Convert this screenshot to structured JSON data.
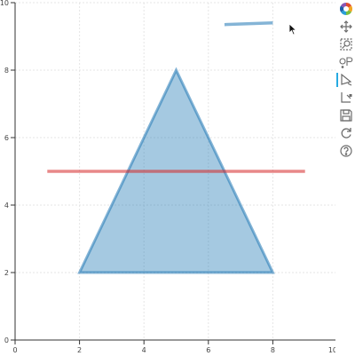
{
  "chart_data": {
    "type": "scatter",
    "title": "",
    "xlabel": "",
    "ylabel": "",
    "xlim": [
      0,
      10
    ],
    "ylim": [
      0,
      10
    ],
    "grid": true,
    "x_ticks": [
      0,
      2,
      4,
      6,
      8,
      10
    ],
    "y_ticks": [
      0,
      2,
      4,
      6,
      8,
      10
    ],
    "x_tick_labels": [
      "0",
      "2",
      "4",
      "6",
      "8",
      "10"
    ],
    "y_tick_labels": [
      "0",
      "2",
      "4",
      "6",
      "8",
      "10"
    ],
    "shapes": [
      {
        "kind": "polygon",
        "points": [
          [
            2,
            2
          ],
          [
            5,
            8
          ],
          [
            8,
            2
          ]
        ],
        "fill": "#1f77b4",
        "fill_alpha": 0.4,
        "line_color": "#1f77b4"
      },
      {
        "kind": "line",
        "points": [
          [
            1,
            5
          ],
          [
            9,
            5
          ]
        ],
        "color": "#d62728"
      },
      {
        "kind": "line",
        "points": [
          [
            6.5,
            9.35
          ],
          [
            8,
            9.4
          ]
        ],
        "color": "#1f77b4"
      }
    ]
  },
  "toolbar": {
    "tools": [
      {
        "name": "bokeh-logo",
        "icon": "bokeh-logo-icon",
        "active": false
      },
      {
        "name": "pan-tool",
        "icon": "pan-icon",
        "active": false
      },
      {
        "name": "box-zoom-tool",
        "icon": "box-zoom-icon",
        "active": false
      },
      {
        "name": "point-draw-tool",
        "icon": "point-draw-icon",
        "active": false
      },
      {
        "name": "poly-draw-tool",
        "icon": "poly-draw-icon",
        "active": true
      },
      {
        "name": "poly-edit-tool",
        "icon": "poly-edit-icon",
        "active": false
      },
      {
        "name": "save-tool",
        "icon": "save-icon",
        "active": false
      },
      {
        "name": "reset-tool",
        "icon": "reset-icon",
        "active": false
      },
      {
        "name": "help-tool",
        "icon": "help-icon",
        "active": false
      }
    ]
  }
}
